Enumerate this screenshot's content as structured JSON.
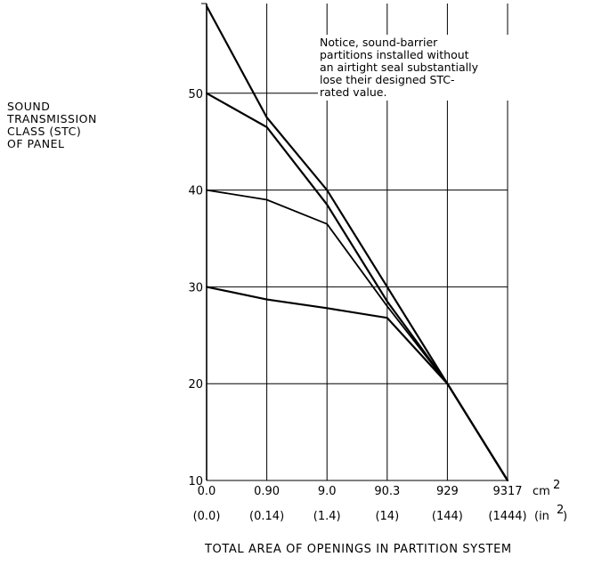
{
  "chart_data": {
    "type": "line",
    "ylabel_lines": [
      "SOUND",
      "TRANSMISSION",
      "CLASS (STC)",
      "OF PANEL"
    ],
    "xlabel": "TOTAL AREA OF OPENINGS IN PARTITION SYSTEM",
    "x_categories": [
      "0.0",
      "0.90",
      "9.0",
      "90.3",
      "929",
      "9317"
    ],
    "x_unit_label": "cm",
    "x_unit_exponent": "2",
    "x_categories_secondary": [
      "(0.0)",
      "(0.14)",
      "(1.4)",
      "(14)",
      "(144)",
      "(1444)"
    ],
    "x_secondary_unit_label": "(in",
    "x_secondary_unit_exponent": "2",
    "x_secondary_unit_close": ")",
    "y_ticks": [
      "10",
      "20",
      "30",
      "40",
      "50"
    ],
    "ylim": [
      10,
      59
    ],
    "grid": true,
    "annotation": [
      "Notice, sound-barrier",
      "partitions installed without",
      "an airtight seal substantially",
      "lose their designed STC-",
      "rated value."
    ],
    "series": [
      {
        "values": [
          59,
          47.5,
          40,
          30,
          20,
          10
        ]
      },
      {
        "values": [
          50,
          46.5,
          38.5,
          28.5,
          20,
          10
        ]
      },
      {
        "values": [
          40,
          39,
          36.5,
          28,
          20,
          10
        ]
      },
      {
        "values": [
          30,
          28.7,
          27.8,
          26.8,
          20,
          10
        ]
      }
    ]
  }
}
